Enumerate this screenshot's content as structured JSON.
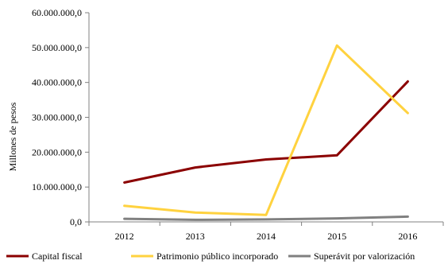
{
  "chart_data": {
    "type": "line",
    "title": "",
    "xlabel": "",
    "ylabel": "Millones de pesos",
    "categories": [
      "2012",
      "2013",
      "2014",
      "2015",
      "2016"
    ],
    "ylim": [
      0,
      60000000
    ],
    "yticks": [
      0,
      10000000,
      20000000,
      30000000,
      40000000,
      50000000,
      60000000
    ],
    "ytick_labels": [
      "0,0",
      "10.000.000,0",
      "20.000.000,0",
      "30.000.000,0",
      "40.000.000,0",
      "50.000.000,0",
      "60.000.000,0"
    ],
    "grid": false,
    "legend_position": "bottom",
    "series": [
      {
        "name": "Capital fiscal",
        "color": "#8B0000",
        "values": [
          11300000,
          15600000,
          17900000,
          19100000,
          40300000
        ]
      },
      {
        "name": "Patrimonio público incorporado",
        "color": "#FFD23F",
        "values": [
          4600000,
          2700000,
          2000000,
          50600000,
          31200000
        ]
      },
      {
        "name": "Superávit por valorización",
        "color": "#808080",
        "values": [
          900000,
          600000,
          700000,
          1000000,
          1500000
        ]
      }
    ]
  }
}
